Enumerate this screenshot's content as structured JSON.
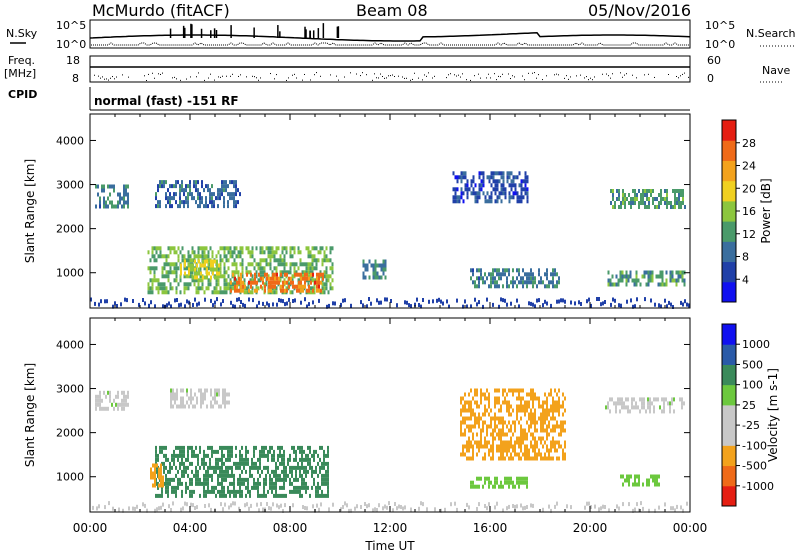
{
  "header": {
    "station": "McMurdo (fitACF)",
    "beam": "Beam 08",
    "date": "05/Nov/2016"
  },
  "left_labels": {
    "nsky": "N.Sky",
    "freq": "Freq.",
    "freq_unit": "[MHz]",
    "cpid": "CPID"
  },
  "right_labels": {
    "nsearch": "N.Search",
    "nave": "Nave"
  },
  "noise_axis": {
    "left_ticks": [
      "10^5",
      "10^0"
    ],
    "right_ticks": [
      "10^5",
      "10^0"
    ]
  },
  "freq_axis": {
    "left_ticks": [
      "18",
      "8"
    ],
    "right_ticks": [
      "60",
      "0"
    ]
  },
  "cpid_text": "normal (fast) -151 RF",
  "colors": {
    "power_scale": [
      "#1010f0",
      "#2040a8",
      "#3a6e9e",
      "#4a9a6a",
      "#8cc63e",
      "#f0d020",
      "#f3a21c",
      "#ef6a18",
      "#e51e12"
    ],
    "velocity_scale": [
      "#e51e12",
      "#ef6a18",
      "#f3a21c",
      "#c8c8c8",
      "#c8c8c8",
      "#6cc83e",
      "#3a8a5a",
      "#2a5aa8",
      "#1010f0"
    ]
  },
  "chart_data": [
    {
      "type": "heatmap",
      "panel": "power",
      "ylabel": "Slant Range [km]",
      "yticks": [
        "1000",
        "2000",
        "3000",
        "4000"
      ],
      "ylim": [
        200,
        4600
      ],
      "xlim": [
        "00:00",
        "24:00"
      ],
      "colorbar": {
        "label": "Power [dB]",
        "ticks": [
          "4",
          "8",
          "12",
          "16",
          "20",
          "24",
          "28"
        ],
        "range": [
          0,
          32
        ]
      },
      "regions": [
        {
          "t0": 2.3,
          "t1": 9.7,
          "r0": 600,
          "r1": 1600,
          "level": 14
        },
        {
          "t0": 5.6,
          "t1": 9.3,
          "r0": 600,
          "r1": 1000,
          "level": 26
        },
        {
          "t0": 3.6,
          "t1": 5.2,
          "r0": 900,
          "r1": 1300,
          "level": 18
        },
        {
          "t0": 2.6,
          "t1": 6.0,
          "r0": 2500,
          "r1": 3100,
          "level": 8
        },
        {
          "t0": 0.2,
          "t1": 1.5,
          "r0": 2500,
          "r1": 3000,
          "level": 10
        },
        {
          "t0": 10.9,
          "t1": 11.8,
          "r0": 900,
          "r1": 1300,
          "level": 10
        },
        {
          "t0": 15.2,
          "t1": 18.8,
          "r0": 700,
          "r1": 1100,
          "level": 10
        },
        {
          "t0": 20.7,
          "t1": 23.8,
          "r0": 750,
          "r1": 1050,
          "level": 12
        },
        {
          "t0": 20.8,
          "t1": 23.8,
          "r0": 2500,
          "r1": 2900,
          "level": 12
        },
        {
          "t0": 14.5,
          "t1": 17.5,
          "r0": 2600,
          "r1": 3300,
          "level": 6
        }
      ]
    },
    {
      "type": "heatmap",
      "panel": "velocity",
      "ylabel": "Slant Range [km]",
      "yticks": [
        "1000",
        "2000",
        "3000",
        "4000"
      ],
      "ylim": [
        200,
        4600
      ],
      "xlim": [
        "00:00",
        "24:00"
      ],
      "xticks": [
        "00:00",
        "04:00",
        "08:00",
        "12:00",
        "16:00",
        "20:00",
        "00:00"
      ],
      "xlabel": "Time UT",
      "colorbar": {
        "label": "Velocity [m s-1]",
        "ticks": [
          "1000",
          "500",
          "100",
          "25",
          "-25",
          "-100",
          "-500",
          "-1000"
        ],
        "range": [
          -1500,
          1500
        ]
      },
      "regions": [
        {
          "t0": 2.6,
          "t1": 9.5,
          "r0": 600,
          "r1": 1700,
          "level": 200
        },
        {
          "t0": 2.4,
          "t1": 3.0,
          "r0": 800,
          "r1": 1300,
          "level": -150
        },
        {
          "t0": 0.2,
          "t1": 1.5,
          "r0": 2500,
          "r1": 2950,
          "level": 0
        },
        {
          "t0": 3.2,
          "t1": 5.6,
          "r0": 2600,
          "r1": 3000,
          "level": 0
        },
        {
          "t0": 15.2,
          "t1": 17.5,
          "r0": 750,
          "r1": 1000,
          "level": 60
        },
        {
          "t0": 21.2,
          "t1": 22.8,
          "r0": 850,
          "r1": 1050,
          "level": 60
        },
        {
          "t0": 20.6,
          "t1": 23.8,
          "r0": 2500,
          "r1": 2800,
          "level": 0
        },
        {
          "t0": 14.8,
          "t1": 19.0,
          "r0": 1400,
          "r1": 3000,
          "level": -150
        }
      ]
    }
  ]
}
